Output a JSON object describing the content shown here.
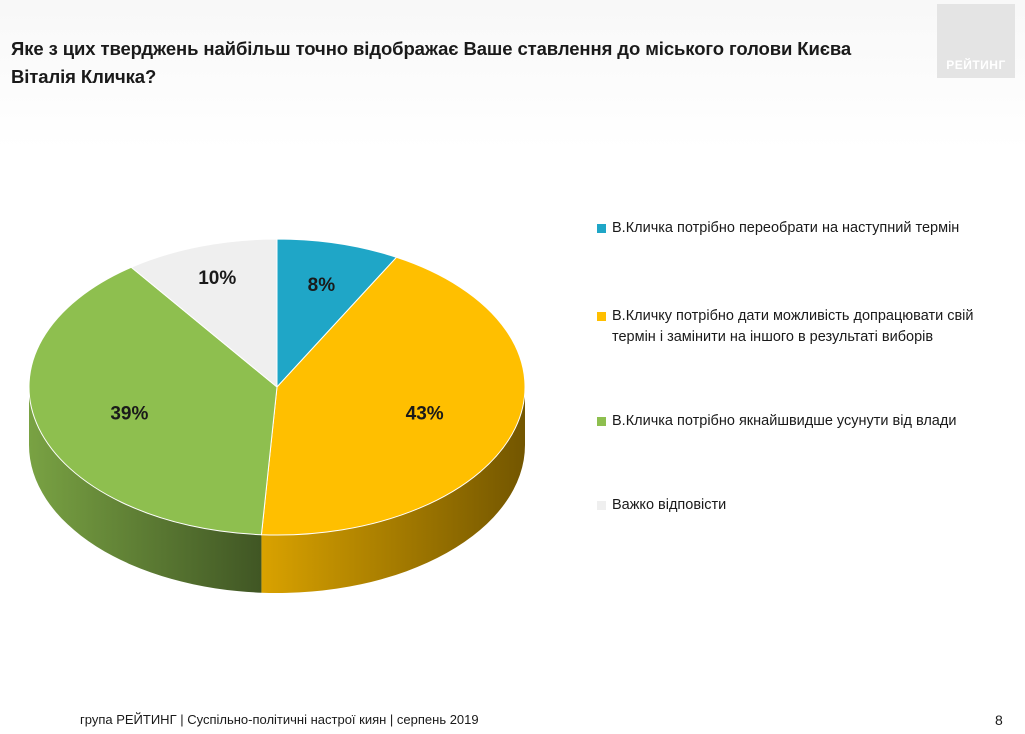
{
  "header": {
    "title": "Яке з цих тверджень найбільш точно відображає Ваше ставлення до міського голови Києва Віталія Кличка?",
    "logo_text": "РЕЙТИНГ"
  },
  "chart_data": {
    "type": "pie",
    "style": "3d",
    "start_angle_deg": 90,
    "direction": "clockwise",
    "legend_placement": "right",
    "slices": [
      {
        "label": "В.Кличка  потрібно переобрати на наступний термін",
        "value": 8,
        "display": "8%",
        "color": "#1fa6c7"
      },
      {
        "label": "В.Кличку потрібно дати можливість допрацювати свій термін і замінити на іншого в результаті виборів",
        "value": 43,
        "display": "43%",
        "color": "#ffbf00"
      },
      {
        "label": "В.Кличка потрібно якнайшвидше усунути від влади",
        "value": 39,
        "display": "39%",
        "color": "#8ebf4f"
      },
      {
        "label": "Важко відповісти",
        "value": 10,
        "display": "10%",
        "color": "#efefef"
      }
    ]
  },
  "footer": {
    "source": "група РЕЙТИНГ | Суспільно-політичні настрої киян | серпень 2019",
    "page_number": "8"
  }
}
